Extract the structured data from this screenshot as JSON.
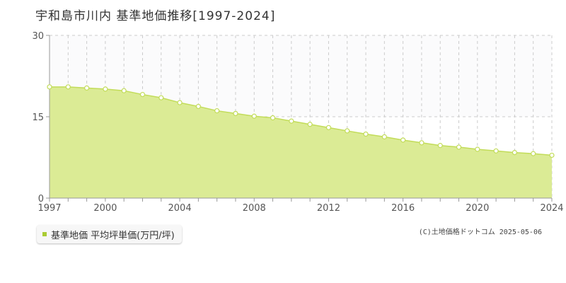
{
  "title": "宇和島市川内 基準地価推移[1997-2024]",
  "credit": "(C)土地価格ドットコム 2025-05-06",
  "chart_data": {
    "type": "area",
    "title": "宇和島市川内 基準地価推移[1997-2024]",
    "xlabel": "",
    "ylabel": "",
    "ylim": [
      0,
      30
    ],
    "xlim": [
      1997,
      2024
    ],
    "grid": true,
    "y_ticks": [
      0,
      15,
      30
    ],
    "x_ticks": [
      1997,
      2000,
      2004,
      2008,
      2012,
      2016,
      2020,
      2024
    ],
    "legend_position": "bottom-left",
    "colors": {
      "fill": "#dbeb95",
      "line": "#c2dc59",
      "marker_fill": "#ffffff",
      "legend_swatch": "#aacc33"
    },
    "series": [
      {
        "name": "基準地価 平均坪単価(万円/坪)",
        "x": [
          1997,
          1998,
          1999,
          2000,
          2001,
          2002,
          2003,
          2004,
          2005,
          2006,
          2007,
          2008,
          2009,
          2010,
          2011,
          2012,
          2013,
          2014,
          2015,
          2016,
          2017,
          2018,
          2019,
          2020,
          2021,
          2022,
          2023,
          2024
        ],
        "values": [
          20.5,
          20.5,
          20.3,
          20.1,
          19.8,
          19.1,
          18.5,
          17.6,
          16.9,
          16.1,
          15.6,
          15.1,
          14.8,
          14.2,
          13.6,
          13.0,
          12.4,
          11.8,
          11.3,
          10.7,
          10.2,
          9.7,
          9.4,
          9.0,
          8.7,
          8.4,
          8.2,
          7.9
        ]
      }
    ]
  }
}
